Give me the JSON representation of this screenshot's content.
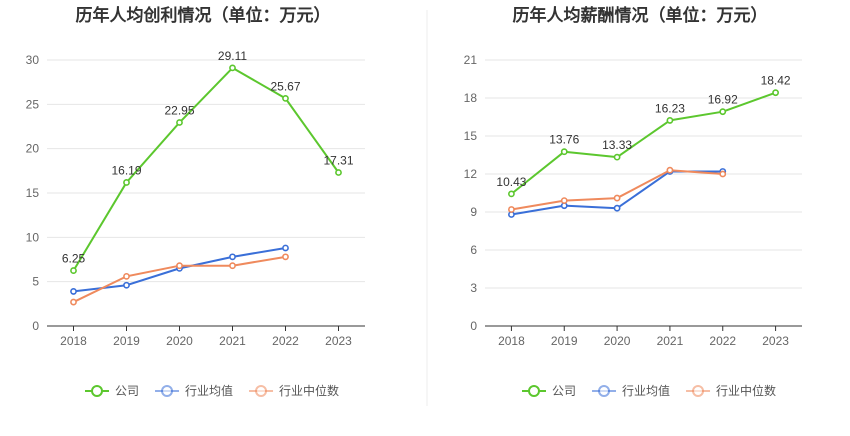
{
  "colors": {
    "company": "#5cc72e",
    "industry_avg": "#3a6fd8",
    "industry_median": "#ef8a5d",
    "grid": "#e6e6e6",
    "axis": "#333333",
    "divider": "#eeeeee"
  },
  "legend": {
    "company": "公司",
    "industry_avg": "行业均值",
    "industry_median": "行业中位数"
  },
  "chart_data": [
    {
      "type": "line",
      "title": "历年人均创利情况（单位：万元）",
      "categories": [
        "2018",
        "2019",
        "2020",
        "2021",
        "2022",
        "2023"
      ],
      "ylim": [
        0,
        30
      ],
      "yticks": [
        "0",
        "5",
        "10",
        "15",
        "20",
        "25",
        "30"
      ],
      "grid": true,
      "legend_position": "bottom",
      "series": [
        {
          "name": "公司",
          "values": [
            6.25,
            16.19,
            22.95,
            29.11,
            25.67,
            17.31
          ],
          "labels": [
            "6.25",
            "16.19",
            "22.95",
            "29.11",
            "25.67",
            "17.31"
          ]
        },
        {
          "name": "行业均值",
          "values": [
            3.9,
            4.6,
            6.5,
            7.8,
            8.8,
            null
          ]
        },
        {
          "name": "行业中位数",
          "values": [
            2.7,
            5.6,
            6.8,
            6.8,
            7.8,
            null
          ]
        }
      ]
    },
    {
      "type": "line",
      "title": "历年人均薪酬情况（单位：万元）",
      "categories": [
        "2018",
        "2019",
        "2020",
        "2021",
        "2022",
        "2023"
      ],
      "ylim": [
        0,
        21
      ],
      "yticks": [
        "0",
        "3",
        "6",
        "9",
        "12",
        "15",
        "18",
        "21"
      ],
      "grid": true,
      "legend_position": "bottom",
      "series": [
        {
          "name": "公司",
          "values": [
            10.43,
            13.76,
            13.33,
            16.23,
            16.92,
            18.42
          ],
          "labels": [
            "10.43",
            "13.76",
            "13.33",
            "16.23",
            "16.92",
            "18.42"
          ]
        },
        {
          "name": "行业均值",
          "values": [
            8.8,
            9.5,
            9.3,
            12.2,
            12.2,
            null
          ]
        },
        {
          "name": "行业中位数",
          "values": [
            9.2,
            9.9,
            10.1,
            12.3,
            12.0,
            null
          ]
        }
      ]
    }
  ]
}
